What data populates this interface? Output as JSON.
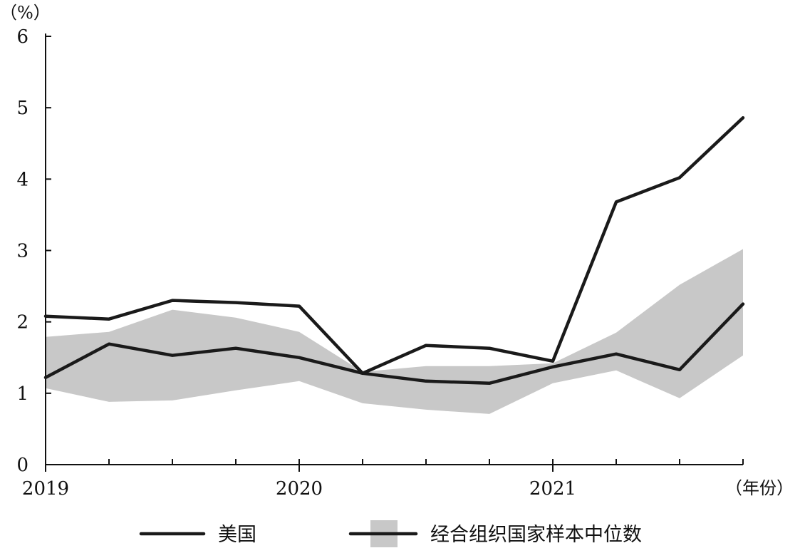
{
  "chart_data": {
    "type": "line",
    "y_unit": "（%）",
    "x_unit": "（年份）",
    "ylim": [
      0,
      6
    ],
    "yticks": [
      "0",
      "1",
      "2",
      "3",
      "4",
      "5",
      "6"
    ],
    "x_tick_labels": [
      {
        "x": 0,
        "label": "2019"
      },
      {
        "x": 4,
        "label": "2020"
      },
      {
        "x": 8,
        "label": "2021"
      }
    ],
    "x_range": [
      0,
      11
    ],
    "grid": false,
    "legend_position": "bottom",
    "series": [
      {
        "name": "美国",
        "color": "#1a1a1a",
        "x": [
          0,
          1,
          2,
          3,
          4,
          5,
          6,
          7,
          8,
          9,
          10,
          11
        ],
        "values": [
          2.08,
          2.04,
          2.3,
          2.27,
          2.22,
          1.28,
          1.67,
          1.63,
          1.45,
          3.68,
          4.02,
          4.86
        ]
      },
      {
        "name": "经合组织国家样本中位数",
        "color": "#1a1a1a",
        "x": [
          0,
          1,
          2,
          3,
          4,
          5,
          6,
          7,
          8,
          9,
          10,
          11
        ],
        "values": [
          1.22,
          1.69,
          1.53,
          1.63,
          1.5,
          1.28,
          1.17,
          1.14,
          1.37,
          1.55,
          1.33,
          2.25
        ]
      }
    ],
    "band": {
      "color": "#c8c8c8",
      "x": [
        0,
        1,
        2,
        3,
        4,
        5,
        6,
        7,
        8,
        9,
        10,
        11
      ],
      "upper": [
        1.79,
        1.86,
        2.17,
        2.06,
        1.86,
        1.3,
        1.38,
        1.38,
        1.42,
        1.85,
        2.52,
        3.02
      ],
      "lower": [
        1.07,
        0.88,
        0.9,
        1.04,
        1.17,
        0.86,
        0.77,
        0.71,
        1.14,
        1.32,
        0.93,
        1.53
      ]
    }
  }
}
